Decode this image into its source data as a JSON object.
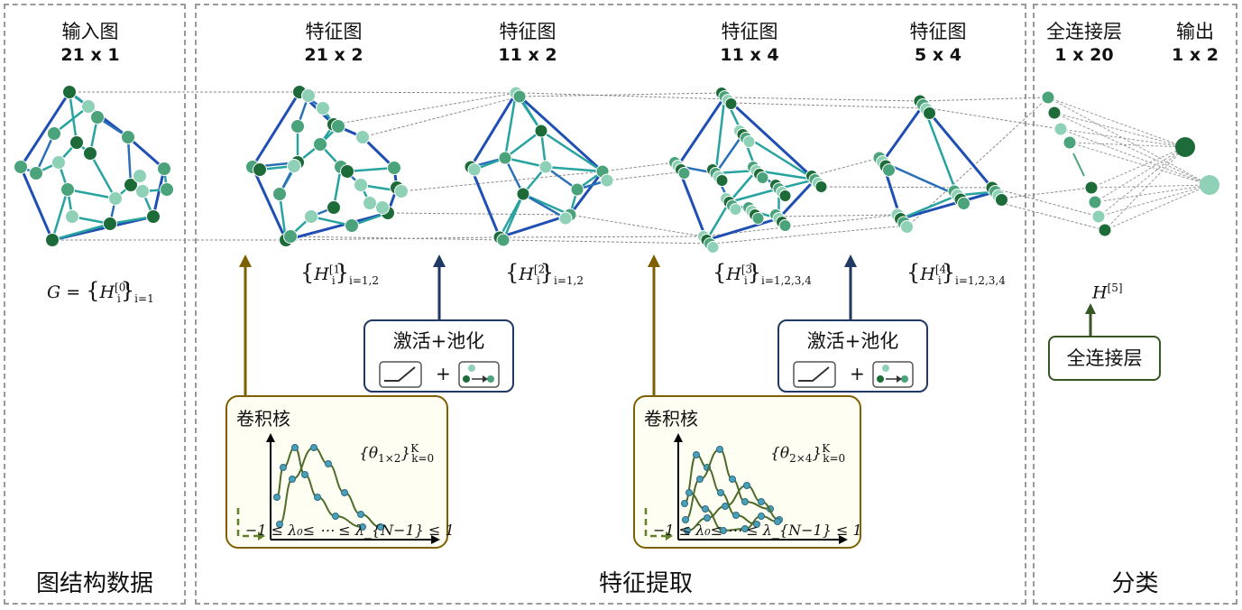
{
  "sections": {
    "input": "图结构数据",
    "features": "特征提取",
    "classify": "分类"
  },
  "layers": [
    {
      "name": "输入图",
      "size": "21 x 1"
    },
    {
      "name": "特征图",
      "size": "21 x 2"
    },
    {
      "name": "特征图",
      "size": "11 x 2"
    },
    {
      "name": "特征图",
      "size": "11 x 4"
    },
    {
      "name": "特征图",
      "size": "5 x 4"
    },
    {
      "name": "全连接层",
      "size": "1 x 20"
    },
    {
      "name": "输出",
      "size": "1 x 2"
    }
  ],
  "formulas": {
    "g0": "G =",
    "h0": "H",
    "h0_sup": "[0]",
    "h0_sub": "i",
    "h0_range": "i=1",
    "h1_sup": "[1]",
    "h1_range": "i=1,2",
    "h2_sup": "[2]",
    "h2_range": "i=1,2",
    "h3_sup": "[3]",
    "h3_range": "i=1,2,3,4",
    "h4_sup": "[4]",
    "h4_range": "i=1,2,3,4",
    "h5": "H",
    "h5_sup": "[5]"
  },
  "activation_box": {
    "title": "激活+池化",
    "plus": "+"
  },
  "conv_box": {
    "title": "卷积核",
    "theta1": "{θ",
    "theta1_sub": "1×2",
    "theta2_sub": "2×4",
    "theta_tail": "}",
    "theta_sup": "K",
    "theta_sub2": "k=0",
    "lambda_range": "−1 ≤ λ₀≤ ⋯ ≤ λ_{N−1} ≤ 1"
  },
  "fc_box": {
    "title": "全连接层"
  },
  "colors": {
    "dark_node": "#1e6b3a",
    "mid_node": "#4aa37a",
    "light_node": "#8fd1b7",
    "edge_blue": "#1f4fb3",
    "edge_teal": "#28a3a0",
    "conv_arrow": "#7f6000",
    "pool_arrow": "#1f3864",
    "fc_arrow": "#375623"
  }
}
